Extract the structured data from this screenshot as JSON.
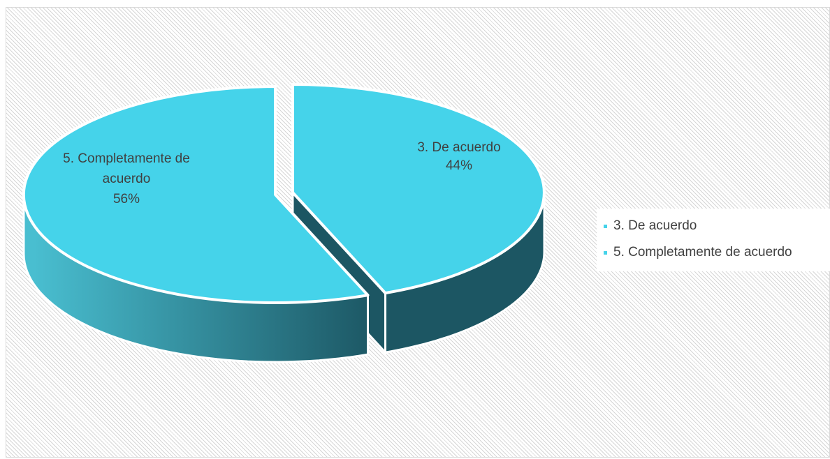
{
  "colors": {
    "top": "#45D3EA",
    "side_light": "#49BED0",
    "side_dark": "#1C5663",
    "gap": "#ffffff"
  },
  "chart_data": {
    "type": "pie",
    "style": "3d-exploded",
    "grid": false,
    "legend_position": "right",
    "slices": [
      {
        "label": "3. De acuerdo",
        "value": 44,
        "value_label": "44%",
        "data_label_lines": [
          "3. De acuerdo",
          "44%"
        ]
      },
      {
        "label": "5. Completamente de acuerdo",
        "value": 56,
        "value_label": "56%",
        "data_label_lines": [
          "5. Completamente de",
          "acuerdo",
          "56%"
        ]
      }
    ]
  },
  "legend": {
    "items": [
      {
        "label": "3. De acuerdo"
      },
      {
        "label": "5. Completamente de acuerdo"
      }
    ]
  }
}
